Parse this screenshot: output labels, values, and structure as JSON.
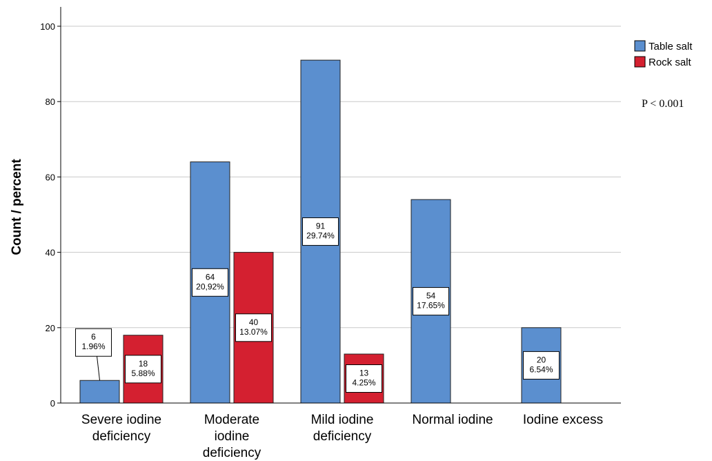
{
  "chart_data": {
    "type": "bar",
    "xlabel": "",
    "ylabel": "Count / percent",
    "ylim": [
      0,
      100
    ],
    "yticks": [
      0,
      20,
      40,
      60,
      80,
      100
    ],
    "grid": true,
    "legend_position": "top-right",
    "categories": [
      [
        "Severe iodine",
        "deficiency"
      ],
      [
        "Moderate",
        "iodine",
        "deficiency"
      ],
      [
        "Mild iodine",
        "deficiency"
      ],
      [
        "Normal iodine"
      ],
      [
        "Iodine excess"
      ]
    ],
    "series": [
      {
        "name": "Table salt",
        "color": "#5b8fcf",
        "values": [
          6,
          64,
          91,
          54,
          20
        ],
        "labels": [
          [
            "6",
            "1.96%"
          ],
          [
            "64",
            "20,92%"
          ],
          [
            "91",
            "29.74%"
          ],
          [
            "54",
            "17.65%"
          ],
          [
            "20",
            "6.54%"
          ]
        ]
      },
      {
        "name": "Rock salt",
        "color": "#d42030",
        "values": [
          18,
          40,
          13,
          null,
          null
        ],
        "labels": [
          [
            "18",
            "5.88%"
          ],
          [
            "40",
            "13.07%"
          ],
          [
            "13",
            "4.25%"
          ],
          null,
          null
        ]
      }
    ],
    "annotation": "P < 0.001"
  }
}
